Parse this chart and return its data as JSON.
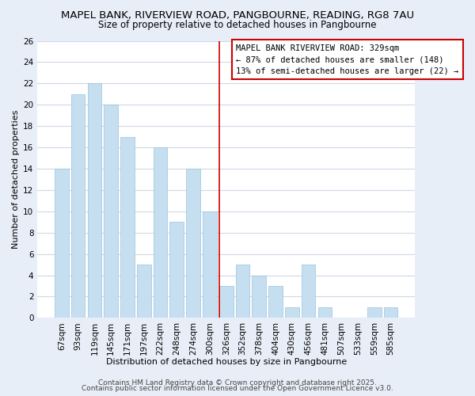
{
  "title": "MAPEL BANK, RIVERVIEW ROAD, PANGBOURNE, READING, RG8 7AU",
  "subtitle": "Size of property relative to detached houses in Pangbourne",
  "xlabel": "Distribution of detached houses by size in Pangbourne",
  "ylabel": "Number of detached properties",
  "footer1": "Contains HM Land Registry data © Crown copyright and database right 2025.",
  "footer2": "Contains public sector information licensed under the Open Government Licence v3.0.",
  "bar_labels": [
    "67sqm",
    "93sqm",
    "119sqm",
    "145sqm",
    "171sqm",
    "197sqm",
    "222sqm",
    "248sqm",
    "274sqm",
    "300sqm",
    "326sqm",
    "352sqm",
    "378sqm",
    "404sqm",
    "430sqm",
    "456sqm",
    "481sqm",
    "507sqm",
    "533sqm",
    "559sqm",
    "585sqm"
  ],
  "bar_values": [
    14,
    21,
    22,
    20,
    17,
    5,
    16,
    9,
    14,
    10,
    3,
    5,
    4,
    3,
    1,
    5,
    1,
    0,
    0,
    1,
    1
  ],
  "bar_color": "#c5dff0",
  "bar_edge_color": "#9ac4db",
  "vline_color": "#cc0000",
  "vline_index": 10,
  "annotation_title": "MAPEL BANK RIVERVIEW ROAD: 329sqm",
  "annotation_line1": "← 87% of detached houses are smaller (148)",
  "annotation_line2": "13% of semi-detached houses are larger (22) →",
  "annotation_box_color": "white",
  "annotation_box_edge": "#cc0000",
  "ylim": [
    0,
    26
  ],
  "yticks": [
    0,
    2,
    4,
    6,
    8,
    10,
    12,
    14,
    16,
    18,
    20,
    22,
    24,
    26
  ],
  "bg_color": "#e8eef8",
  "plot_bg_color": "#ffffff",
  "grid_color": "#d0d8e8",
  "title_fontsize": 9.5,
  "subtitle_fontsize": 8.5,
  "xlabel_fontsize": 8,
  "ylabel_fontsize": 8,
  "tick_fontsize": 7.5,
  "annotation_fontsize": 7.5,
  "footer_fontsize": 6.5
}
